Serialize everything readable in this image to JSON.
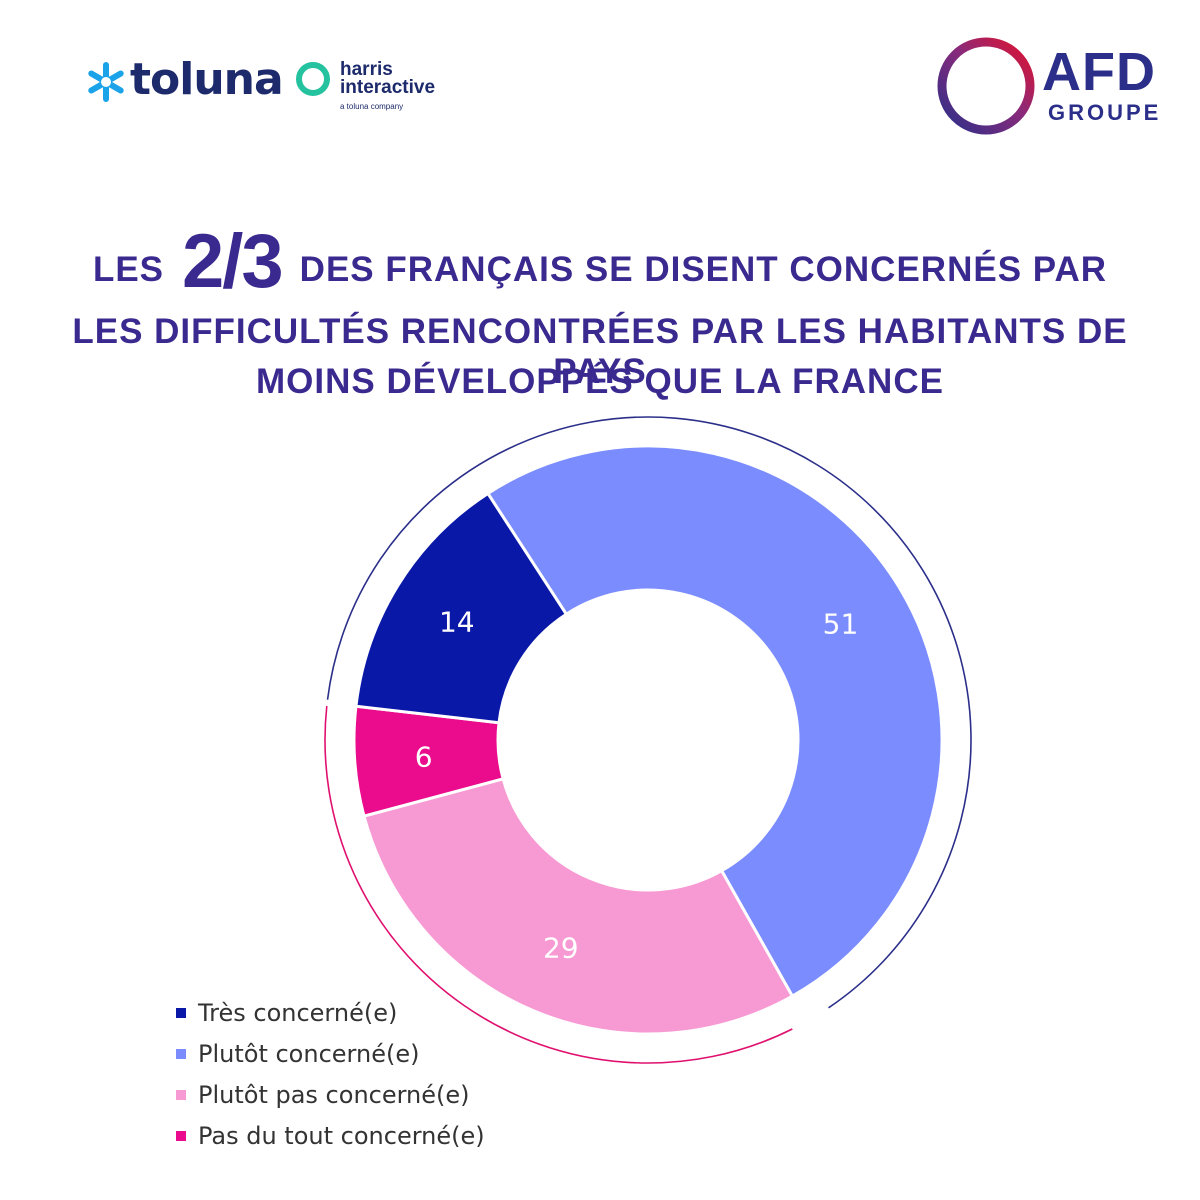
{
  "logos": {
    "toluna": "toluna",
    "harris_line1": "harris",
    "harris_line2": "interactive",
    "harris_tagline": "a toluna company",
    "afd": "AFD",
    "afd_sub": "GROUPE"
  },
  "headline": {
    "prefix": "LES",
    "big": "2/3",
    "line1": "DES FRANÇAIS SE DISENT CONCERNÉS PAR",
    "line2": "LES DIFFICULTÉS RENCONTRÉES PAR LES HABITANTS DE PAYS",
    "line3": "MOINS DÉVELOPPÉS QUE LA FRANCE"
  },
  "chart_data": {
    "type": "pie",
    "variant": "donut",
    "title": "",
    "slices": [
      {
        "label": "Plutôt concerné(e)",
        "value": 51,
        "color": "#7b8cff"
      },
      {
        "label": "Plutôt pas concerné(e)",
        "value": 29,
        "color": "#f79ad3"
      },
      {
        "label": "Pas du tout concerné(e)",
        "value": 6,
        "color": "#ea0c8c"
      },
      {
        "label": "Très concerné(e)",
        "value": 14,
        "color": "#0a18a8"
      }
    ],
    "legend_order": [
      "Très concerné(e)",
      "Plutôt concerné(e)",
      "Plutôt pas concerné(e)",
      "Pas du tout concerné(e)"
    ],
    "legend_position": "bottom-left",
    "outer_arc_colors": {
      "concerned": "#2b2f8a",
      "not_concerned": "#e0106f"
    }
  }
}
